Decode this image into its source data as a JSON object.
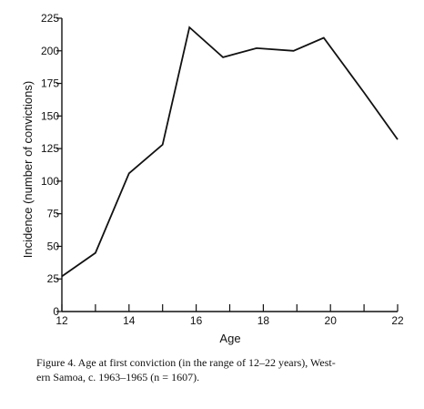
{
  "chart_data": {
    "type": "line",
    "xlabel": "Age",
    "ylabel": "Incidence (number of convictions)",
    "xlim": [
      12,
      22
    ],
    "ylim": [
      0,
      225
    ],
    "x_ticks": [
      12,
      13,
      14,
      15,
      16,
      17,
      18,
      19,
      20,
      21,
      22
    ],
    "x_tick_labels": [
      "12",
      "14",
      "16",
      "18",
      "20",
      "22"
    ],
    "y_ticks": [
      0,
      25,
      50,
      75,
      100,
      125,
      150,
      175,
      200,
      225
    ],
    "grid": false,
    "legend": "none",
    "series": [
      {
        "x": [
          12,
          13,
          14,
          15,
          15.8,
          16.8,
          17.8,
          18.9,
          19.8,
          21,
          22
        ],
        "y": [
          27,
          45,
          106,
          128,
          218,
          195,
          202,
          200,
          210,
          168,
          132
        ]
      }
    ]
  },
  "caption": {
    "line1": "Figure 4.  Age at first conviction (in the range of 12–22 years), West-",
    "line2": "ern Samoa, c. 1963–1965 (n = 1607)."
  }
}
